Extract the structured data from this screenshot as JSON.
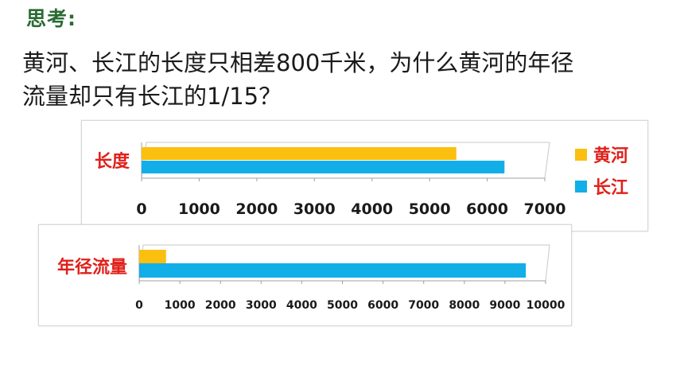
{
  "heading": "思考:",
  "question": {
    "line1": "黄河、长江的长度只相差800千米，为什么黄河的年径",
    "line2": "流量却只有长江的1/15？"
  },
  "colors": {
    "yellow_river": "#fbbf0f",
    "yangtze": "#12aee8",
    "label_red": "#e0201a",
    "heading_green": "#2b6b33"
  },
  "chart_data": [
    {
      "type": "bar",
      "orientation": "horizontal",
      "categories": [
        "长度"
      ],
      "series": [
        {
          "name": "黄河",
          "values": [
            5464
          ]
        },
        {
          "name": "长江",
          "values": [
            6300
          ]
        }
      ],
      "xlim": [
        0,
        7000
      ],
      "xticks": [
        0,
        1000,
        2000,
        3000,
        4000,
        5000,
        6000,
        7000
      ],
      "legend": "right",
      "grid": false
    },
    {
      "type": "bar",
      "orientation": "horizontal",
      "categories": [
        "年径流量"
      ],
      "series": [
        {
          "name": "黄河",
          "values": [
            661
          ]
        },
        {
          "name": "长江",
          "values": [
            9513
          ]
        }
      ],
      "xlim": [
        0,
        10000
      ],
      "xticks": [
        0,
        1000,
        2000,
        3000,
        4000,
        5000,
        6000,
        7000,
        8000,
        9000,
        10000
      ],
      "legend": "none",
      "grid": false
    }
  ]
}
